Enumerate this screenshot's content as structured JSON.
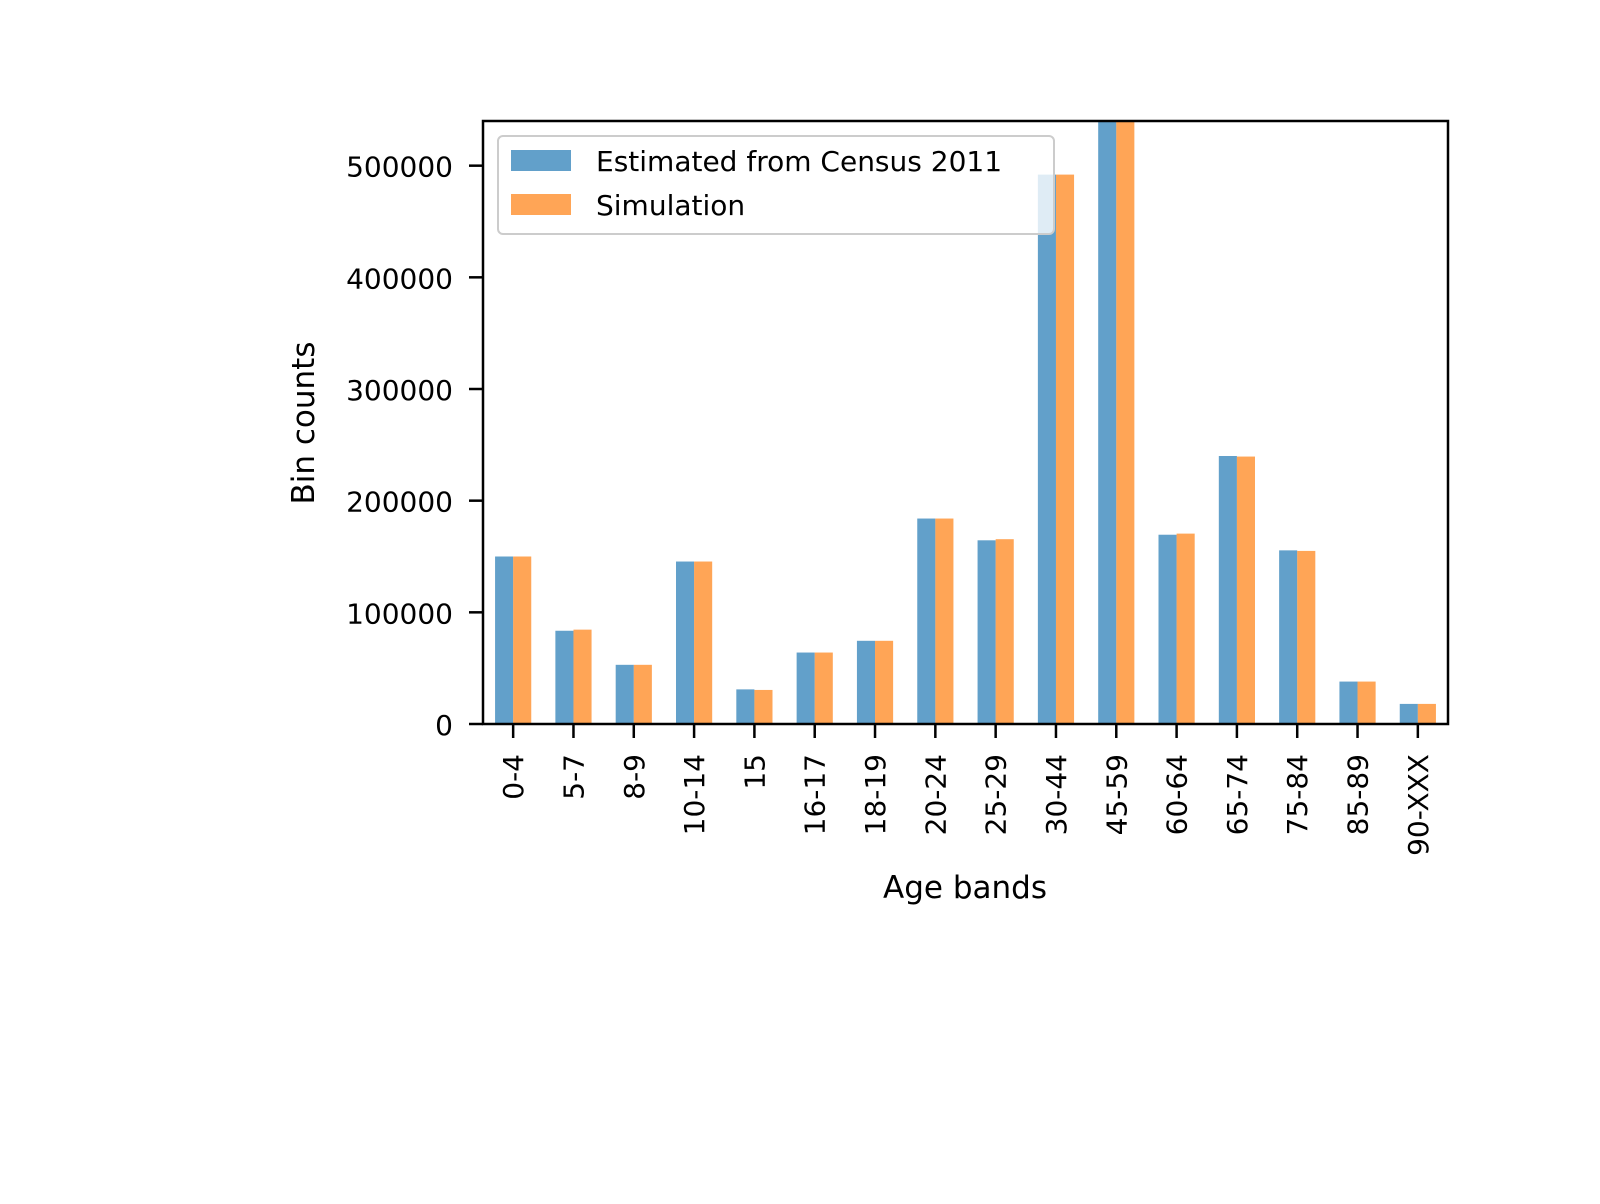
{
  "chart_data": {
    "type": "bar",
    "title": "",
    "xlabel": "Age bands",
    "ylabel": "Bin counts",
    "categories": [
      "0-4",
      "5-7",
      "8-9",
      "10-14",
      "15",
      "16-17",
      "18-19",
      "20-24",
      "25-29",
      "30-44",
      "45-59",
      "60-64",
      "65-74",
      "75-84",
      "85-89",
      "90-XXX"
    ],
    "series": [
      {
        "name": "Estimated from Census 2011",
        "color": "#1f77b4",
        "values": [
          150000,
          83500,
          53000,
          145500,
          31000,
          64000,
          74500,
          184000,
          164500,
          492000,
          540000,
          169500,
          240000,
          155500,
          38000,
          18000
        ]
      },
      {
        "name": "Simulation",
        "color": "#ff7f0e",
        "values": [
          150000,
          84500,
          53000,
          145500,
          30500,
          64000,
          74500,
          184000,
          165500,
          492000,
          540000,
          170500,
          239500,
          155000,
          38000,
          18000
        ]
      }
    ],
    "ylim": [
      0,
      540000
    ],
    "yticks": [
      0,
      100000,
      200000,
      300000,
      400000,
      500000
    ],
    "ytick_labels": [
      "0",
      "100000",
      "200000",
      "300000",
      "400000",
      "500000"
    ],
    "grid": false,
    "legend": "top-left",
    "bar_opacity": 0.7
  }
}
